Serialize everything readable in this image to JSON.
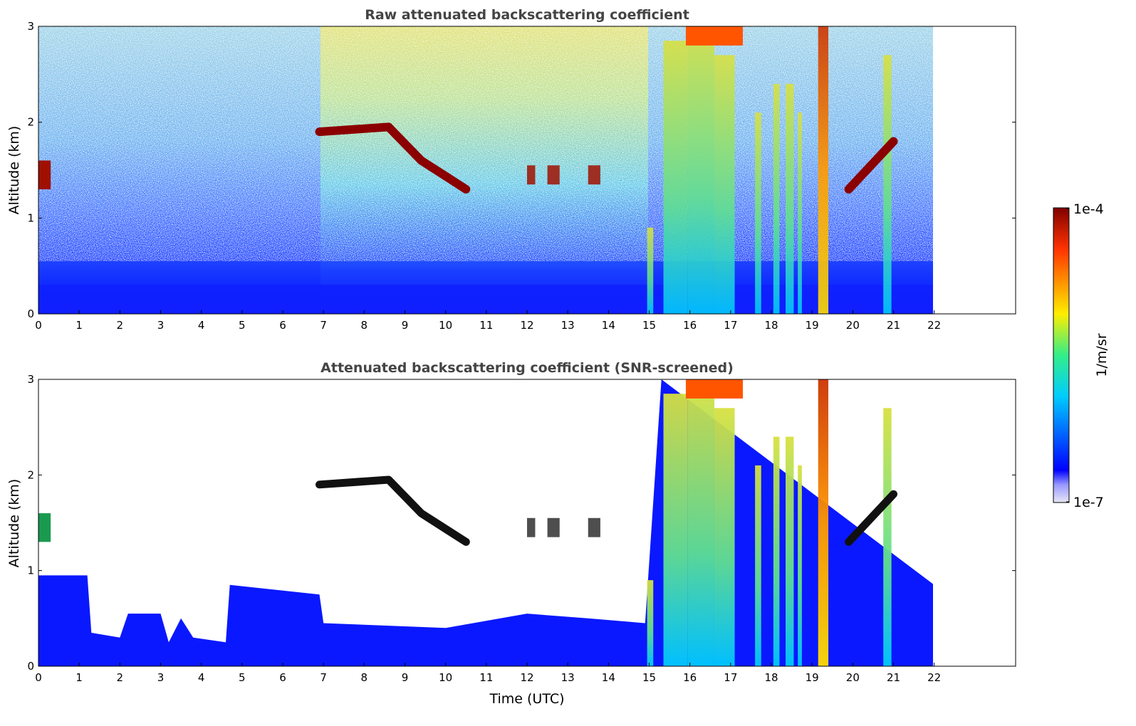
{
  "chart_data": [
    {
      "type": "heatmap",
      "title": "Raw attenuated backscattering coefficient",
      "xlabel": "",
      "ylabel": "Altitude (km)",
      "xlim": [
        0,
        24
      ],
      "ylim": [
        0,
        3
      ],
      "x_ticks": [
        0,
        1,
        2,
        3,
        4,
        5,
        6,
        7,
        8,
        9,
        10,
        11,
        12,
        13,
        14,
        15,
        16,
        17,
        18,
        19,
        20,
        21,
        22
      ],
      "y_ticks": [
        0,
        1,
        2,
        3
      ],
      "data_end_time": 22,
      "features": [
        {
          "kind": "cloud_layer",
          "time": [
            6.9,
            10.5
          ],
          "altitude_path": [
            [
              6.9,
              1.9
            ],
            [
              8.6,
              1.95
            ],
            [
              9.4,
              1.6
            ],
            [
              10.5,
              1.3
            ]
          ]
        },
        {
          "kind": "cloud_patch",
          "time": [
            0.0,
            0.3
          ],
          "altitude": [
            1.3,
            1.6
          ]
        },
        {
          "kind": "cloud_patches",
          "time": [
            11.9,
            13.9
          ],
          "altitude": [
            1.35,
            1.55
          ]
        },
        {
          "kind": "precipitation_shafts",
          "time": [
            15.3,
            21.0
          ],
          "altitude": [
            0,
            3
          ]
        },
        {
          "kind": "high_cloud",
          "time": [
            15.9,
            17.3
          ],
          "altitude": [
            2.8,
            3.0
          ]
        },
        {
          "kind": "cloud_layer",
          "time": [
            19.9,
            21.0
          ],
          "altitude_path": [
            [
              19.9,
              1.3
            ],
            [
              21.0,
              1.8
            ]
          ]
        }
      ]
    },
    {
      "type": "heatmap",
      "title": "Attenuated backscattering coefficient (SNR-screened)",
      "xlabel": "Time (UTC)",
      "ylabel": "Altitude (km)",
      "xlim": [
        0,
        24
      ],
      "ylim": [
        0,
        3
      ],
      "x_ticks": [
        0,
        1,
        2,
        3,
        4,
        5,
        6,
        7,
        8,
        9,
        10,
        11,
        12,
        13,
        14,
        15,
        16,
        17,
        18,
        19,
        20,
        21,
        22
      ],
      "y_ticks": [
        0,
        1,
        2,
        3
      ],
      "data_end_time": 22,
      "boundary_layer_top": [
        [
          0,
          0.95
        ],
        [
          1.2,
          0.95
        ],
        [
          1.3,
          0.35
        ],
        [
          2.0,
          0.3
        ],
        [
          2.2,
          0.55
        ],
        [
          3.0,
          0.55
        ],
        [
          3.2,
          0.25
        ],
        [
          3.5,
          0.5
        ],
        [
          3.8,
          0.3
        ],
        [
          4.6,
          0.25
        ],
        [
          4.7,
          0.85
        ],
        [
          6.9,
          0.75
        ],
        [
          7.0,
          0.45
        ],
        [
          10.0,
          0.4
        ],
        [
          12.0,
          0.55
        ],
        [
          13.5,
          0.5
        ],
        [
          14.9,
          0.45
        ],
        [
          15.3,
          3.0
        ],
        [
          22,
          0.85
        ]
      ]
    }
  ],
  "colorbar": {
    "max_label": "1e-4",
    "min_label": "1e-7",
    "label": "1/m/sr",
    "colormap": "jet"
  }
}
